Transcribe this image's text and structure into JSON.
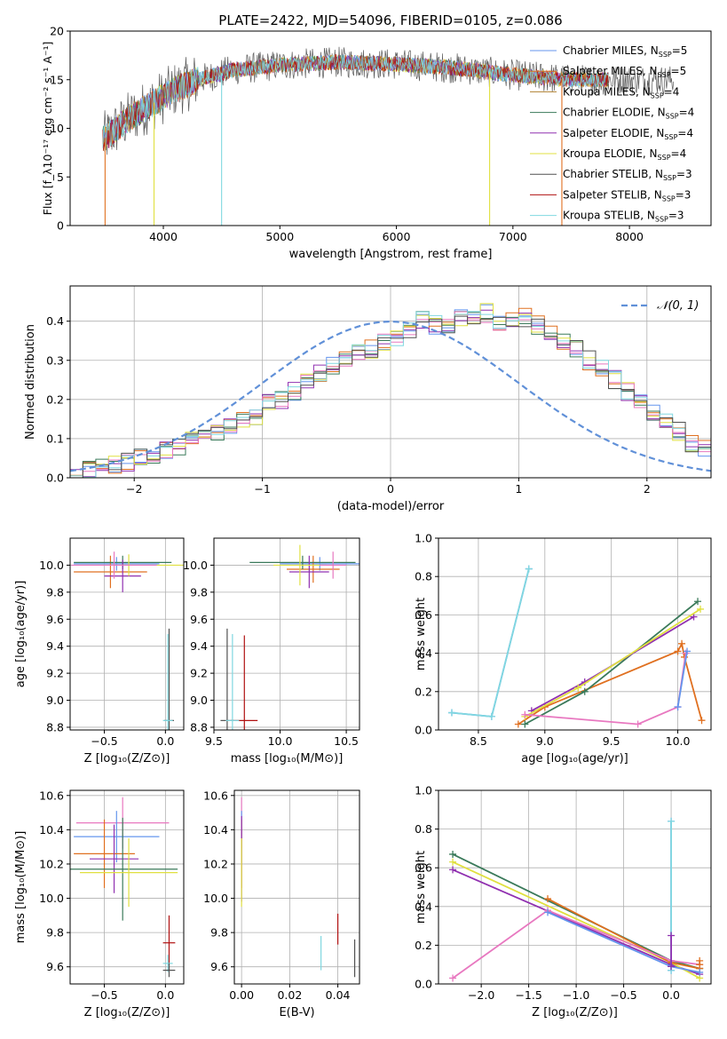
{
  "colors": {
    "chabrier_miles": "#6495ed",
    "salpeter_miles": "#e07020",
    "kroupa_miles": "#b08030",
    "chabrier_elodie": "#3a7a5a",
    "salpeter_elodie": "#9030b0",
    "kroupa_elodie": "#e0e040",
    "chabrier_stelib": "#505050",
    "salpeter_stelib": "#b01010",
    "kroupa_stelib": "#80d8e0",
    "extra_pink": "#e878c0",
    "grid": "#b0b0b0"
  },
  "chart_data": [
    {
      "type": "line",
      "title": "PLATE=2422, MJD=54096, FIBERID=0105, z=0.086",
      "xlabel": "wavelength [Angstrom, rest frame]",
      "ylabel": "Flux [f_λ10⁻¹⁷ erg cm⁻² s⁻¹ A⁻¹]",
      "xlim": [
        3200,
        8700
      ],
      "ylim": [
        0,
        20
      ],
      "xticks": [
        "4000",
        "5000",
        "6000",
        "7000",
        "8000"
      ],
      "yticks": [
        "0",
        "5",
        "10",
        "15",
        "20"
      ],
      "legend_position": "right",
      "series": [
        {
          "name": "Chabrier MILES, N",
          "sub": "SSP",
          "suffix": "=5",
          "color": "chabrier_miles"
        },
        {
          "name": "Salpeter MILES, N",
          "sub": "SSP",
          "suffix": "=5",
          "color": "salpeter_miles"
        },
        {
          "name": "Kroupa MILES, N",
          "sub": "SSP",
          "suffix": "=4",
          "color": "kroupa_miles"
        },
        {
          "name": "Chabrier ELODIE, N",
          "sub": "SSP",
          "suffix": "=4",
          "color": "chabrier_elodie"
        },
        {
          "name": "Salpeter ELODIE, N",
          "sub": "SSP",
          "suffix": "=4",
          "color": "salpeter_elodie"
        },
        {
          "name": "Kroupa ELODIE, N",
          "sub": "SSP",
          "suffix": "=4",
          "color": "kroupa_elodie"
        },
        {
          "name": "Chabrier STELIB, N",
          "sub": "SSP",
          "suffix": "=3",
          "color": "chabrier_stelib"
        },
        {
          "name": "Salpeter STELIB, N",
          "sub": "SSP",
          "suffix": "=3",
          "color": "salpeter_stelib"
        },
        {
          "name": "Kroupa STELIB, N",
          "sub": "SSP",
          "suffix": "=3",
          "color": "kroupa_stelib"
        }
      ],
      "spectrum_shape": {
        "knots": [
          [
            3500,
            9
          ],
          [
            3700,
            11
          ],
          [
            3900,
            12.5
          ],
          [
            4100,
            14
          ],
          [
            4300,
            15
          ],
          [
            4600,
            16
          ],
          [
            5000,
            16.5
          ],
          [
            5500,
            16.8
          ],
          [
            6000,
            16.6
          ],
          [
            6500,
            16.2
          ],
          [
            7000,
            15.5
          ],
          [
            7500,
            15
          ],
          [
            7800,
            15
          ]
        ],
        "drops": [
          [
            3500,
            0
          ],
          [
            3920,
            0
          ],
          [
            4500,
            0
          ],
          [
            6800,
            0
          ],
          [
            7420,
            0
          ]
        ]
      }
    },
    {
      "type": "histogram",
      "xlabel": "(data-model)/error",
      "ylabel": "Normed distribution",
      "xlim": [
        -2.5,
        2.5
      ],
      "ylim": [
        0,
        0.49
      ],
      "xticks": [
        "−2",
        "−1",
        "0",
        "1",
        "2"
      ],
      "yticks": [
        "0.0",
        "0.1",
        "0.2",
        "0.3",
        "0.4"
      ],
      "legend": "𝒩(0, 1)",
      "bin_width": 0.1,
      "base_values": [
        0.01,
        0.02,
        0.03,
        0.035,
        0.04,
        0.05,
        0.06,
        0.07,
        0.08,
        0.1,
        0.11,
        0.12,
        0.13,
        0.15,
        0.16,
        0.19,
        0.2,
        0.22,
        0.25,
        0.27,
        0.29,
        0.3,
        0.32,
        0.33,
        0.35,
        0.36,
        0.38,
        0.4,
        0.39,
        0.39,
        0.41,
        0.41,
        0.42,
        0.4,
        0.4,
        0.41,
        0.39,
        0.37,
        0.35,
        0.33,
        0.3,
        0.28,
        0.25,
        0.22,
        0.2,
        0.17,
        0.14,
        0.12,
        0.09,
        0.08,
        0.06
      ],
      "gauss_mu": 0,
      "gauss_sigma": 1
    },
    {
      "type": "errorbar",
      "xlabel": "Z [log₁₀(Z/Z⊙)]",
      "ylabel": "age  [log₁₀(age/yr)]",
      "xlim": [
        -0.78,
        0.15
      ],
      "ylim": [
        8.78,
        10.2
      ],
      "xticks": [
        "−0.5",
        "0.0"
      ],
      "yticks": [
        "8.8",
        "9.0",
        "9.2",
        "9.4",
        "9.6",
        "9.8",
        "10.0"
      ],
      "points": [
        {
          "x": -0.4,
          "xe": 0.35,
          "y": 10.01,
          "ye": 0.05,
          "color": "chabrier_miles"
        },
        {
          "x": -0.45,
          "xe": 0.3,
          "y": 9.95,
          "ye": 0.12,
          "color": "salpeter_miles"
        },
        {
          "x": -0.35,
          "xe": 0.4,
          "y": 10.02,
          "ye": 0.05,
          "color": "chabrier_elodie"
        },
        {
          "x": -0.35,
          "xe": 0.15,
          "y": 9.92,
          "ye": 0.12,
          "color": "salpeter_elodie"
        },
        {
          "x": -0.3,
          "xe": 0.45,
          "y": 10.0,
          "ye": 0.08,
          "color": "kroupa_elodie"
        },
        {
          "x": -0.42,
          "xe": 0.35,
          "y": 10.0,
          "ye": 0.1,
          "color": "extra_pink"
        },
        {
          "x": 0.03,
          "xe": 0.04,
          "y": 8.85,
          "ye": 0.68,
          "color": "chabrier_stelib"
        },
        {
          "x": 0.02,
          "xe": 0.04,
          "y": 8.85,
          "ye": 0.64,
          "color": "kroupa_stelib"
        }
      ]
    },
    {
      "type": "errorbar",
      "xlabel": "mass [log₁₀(M/M⊙)]",
      "ylabel": "",
      "xlim": [
        9.5,
        10.6
      ],
      "ylim": [
        8.78,
        10.2
      ],
      "xticks": [
        "9.5",
        "10.0",
        "10.5"
      ],
      "yticks": [
        "8.8",
        "9.0",
        "9.2",
        "9.4",
        "9.6",
        "9.8",
        "10.0"
      ],
      "points": [
        {
          "x": 10.3,
          "xe": 0.3,
          "y": 10.01,
          "ye": 0.05,
          "color": "chabrier_miles"
        },
        {
          "x": 10.25,
          "xe": 0.2,
          "y": 9.97,
          "ye": 0.1,
          "color": "salpeter_miles"
        },
        {
          "x": 10.17,
          "xe": 0.4,
          "y": 10.02,
          "ye": 0.05,
          "color": "chabrier_elodie"
        },
        {
          "x": 10.22,
          "xe": 0.15,
          "y": 9.95,
          "ye": 0.12,
          "color": "salpeter_elodie"
        },
        {
          "x": 10.15,
          "xe": 0.2,
          "y": 10.0,
          "ye": 0.15,
          "color": "kroupa_elodie"
        },
        {
          "x": 10.4,
          "xe": 0.1,
          "y": 10.0,
          "ye": 0.1,
          "color": "extra_pink"
        },
        {
          "x": 9.6,
          "xe": 0.05,
          "y": 8.85,
          "ye": 0.68,
          "color": "chabrier_stelib"
        },
        {
          "x": 9.73,
          "xe": 0.1,
          "y": 8.85,
          "ye": 0.63,
          "color": "salpeter_stelib"
        },
        {
          "x": 9.64,
          "xe": 0.05,
          "y": 8.85,
          "ye": 0.64,
          "color": "kroupa_stelib"
        }
      ]
    },
    {
      "type": "line",
      "xlabel": "age  [log₁₀(age/yr)]",
      "ylabel": "mass weight",
      "xlim": [
        8.2,
        10.25
      ],
      "ylim": [
        0,
        1
      ],
      "xticks": [
        "8.5",
        "9.0",
        "9.5",
        "10.0"
      ],
      "yticks": [
        "0.0",
        "0.2",
        "0.4",
        "0.6",
        "0.8",
        "1.0"
      ],
      "series": [
        {
          "color": "chabrier_miles",
          "x": [
            8.3,
            8.6,
            8.88
          ],
          "y": [
            0.09,
            0.07,
            0.84
          ]
        },
        {
          "color": "kroupa_stelib",
          "x": [
            8.3,
            8.6,
            8.88
          ],
          "y": [
            0.09,
            0.07,
            0.84
          ]
        },
        {
          "color": "salpeter_miles",
          "x": [
            8.8,
            9.0,
            10.0,
            10.03,
            10.05,
            10.18
          ],
          "y": [
            0.03,
            0.12,
            0.41,
            0.45,
            0.38,
            0.05
          ]
        },
        {
          "color": "chabrier_elodie",
          "x": [
            8.85,
            9.3,
            10.15
          ],
          "y": [
            0.03,
            0.2,
            0.67
          ]
        },
        {
          "color": "salpeter_elodie",
          "x": [
            8.9,
            9.3,
            10.12
          ],
          "y": [
            0.1,
            0.25,
            0.59
          ]
        },
        {
          "color": "kroupa_elodie",
          "x": [
            8.85,
            9.25,
            10.17
          ],
          "y": [
            0.07,
            0.22,
            0.63
          ]
        },
        {
          "color": "extra_pink",
          "x": [
            8.85,
            9.7,
            10.0,
            10.06
          ],
          "y": [
            0.08,
            0.03,
            0.12,
            0.4
          ]
        },
        {
          "color": "chabrier_miles",
          "x": [
            10.0,
            10.07
          ],
          "y": [
            0.12,
            0.41
          ]
        }
      ]
    },
    {
      "type": "errorbar",
      "xlabel": "Z [log₁₀(Z/Z⊙)]",
      "ylabel": "mass [log₁₀(M/M⊙)]",
      "xlim": [
        -0.78,
        0.15
      ],
      "ylim": [
        9.5,
        10.63
      ],
      "xticks": [
        "−0.5",
        "0.0"
      ],
      "yticks": [
        "9.6",
        "9.8",
        "10.0",
        "10.2",
        "10.4",
        "10.6"
      ],
      "points": [
        {
          "x": -0.35,
          "xe": 0.38,
          "y": 10.44,
          "ye": 0.15,
          "color": "extra_pink"
        },
        {
          "x": -0.4,
          "xe": 0.35,
          "y": 10.36,
          "ye": 0.15,
          "color": "chabrier_miles"
        },
        {
          "x": -0.5,
          "xe": 0.25,
          "y": 10.26,
          "ye": 0.2,
          "color": "salpeter_miles"
        },
        {
          "x": -0.42,
          "xe": 0.2,
          "y": 10.23,
          "ye": 0.2,
          "color": "salpeter_elodie"
        },
        {
          "x": -0.35,
          "xe": 0.45,
          "y": 10.17,
          "ye": 0.3,
          "color": "chabrier_elodie"
        },
        {
          "x": -0.3,
          "xe": 0.4,
          "y": 10.15,
          "ye": 0.2,
          "color": "kroupa_elodie"
        },
        {
          "x": 0.03,
          "xe": 0.05,
          "y": 9.74,
          "ye": 0.16,
          "color": "salpeter_stelib"
        },
        {
          "x": 0.02,
          "xe": 0.04,
          "y": 9.62,
          "ye": 0.05,
          "color": "kroupa_stelib"
        },
        {
          "x": 0.03,
          "xe": 0.05,
          "y": 9.58,
          "ye": 0.04,
          "color": "chabrier_stelib"
        }
      ]
    },
    {
      "type": "errorbar",
      "xlabel": "E(B-V)",
      "ylabel": "",
      "xlim": [
        -0.003,
        0.049
      ],
      "ylim": [
        9.5,
        10.63
      ],
      "xticks": [
        "0.00",
        "0.02",
        "0.04"
      ],
      "yticks": [
        "9.6",
        "9.8",
        "10.0",
        "10.2",
        "10.4",
        "10.6"
      ],
      "points": [
        {
          "x": 0.0,
          "xe": 0,
          "y": 10.44,
          "ye": 0.15,
          "color": "extra_pink"
        },
        {
          "x": 0.0,
          "xe": 0,
          "y": 10.36,
          "ye": 0.15,
          "color": "chabrier_miles"
        },
        {
          "x": 0.0,
          "xe": 0,
          "y": 10.26,
          "ye": 0.2,
          "color": "salpeter_miles"
        },
        {
          "x": 0.0,
          "xe": 0,
          "y": 10.23,
          "ye": 0.25,
          "color": "salpeter_elodie"
        },
        {
          "x": 0.0,
          "xe": 0,
          "y": 10.15,
          "ye": 0.2,
          "color": "kroupa_elodie"
        },
        {
          "x": 0.04,
          "xe": 0,
          "y": 9.82,
          "ye": 0.09,
          "color": "salpeter_stelib"
        },
        {
          "x": 0.033,
          "xe": 0,
          "y": 9.68,
          "ye": 0.1,
          "color": "kroupa_stelib"
        },
        {
          "x": 0.047,
          "xe": 0,
          "y": 9.65,
          "ye": 0.11,
          "color": "chabrier_stelib"
        }
      ]
    },
    {
      "type": "line",
      "xlabel": "Z [log₁₀(Z/Z⊙)]",
      "ylabel": "mass weight",
      "xlim": [
        -2.45,
        0.42
      ],
      "ylim": [
        0,
        1
      ],
      "xticks": [
        "−2.0",
        "−1.5",
        "−1.0",
        "−0.5",
        "0.0"
      ],
      "yticks": [
        "0.0",
        "0.2",
        "0.4",
        "0.6",
        "0.8",
        "1.0"
      ],
      "series": [
        {
          "color": "chabrier_elodie",
          "x": [
            -2.3,
            0.0,
            0.3
          ],
          "y": [
            0.67,
            0.12,
            0.08
          ]
        },
        {
          "color": "salpeter_elodie",
          "x": [
            -2.3,
            0.0,
            0.3
          ],
          "y": [
            0.59,
            0.1,
            0.05
          ]
        },
        {
          "color": "kroupa_elodie",
          "x": [
            -2.3,
            0.0,
            0.3
          ],
          "y": [
            0.63,
            0.11,
            0.03
          ]
        },
        {
          "color": "salpeter_miles",
          "x": [
            -1.3,
            0.0,
            0.3
          ],
          "y": [
            0.44,
            0.11,
            0.08
          ]
        },
        {
          "color": "extra_pink",
          "x": [
            -2.3,
            -1.3,
            0.0,
            0.3
          ],
          "y": [
            0.03,
            0.38,
            0.12,
            0.1
          ]
        },
        {
          "color": "chabrier_miles",
          "x": [
            -1.3,
            0.0,
            0.3
          ],
          "y": [
            0.37,
            0.09,
            0.06
          ]
        },
        {
          "color": "chabrier_miles",
          "x": [
            0.0,
            0.0
          ],
          "y": [
            0.07,
            0.84
          ]
        },
        {
          "color": "kroupa_stelib",
          "x": [
            0.0,
            0.0
          ],
          "y": [
            0.07,
            0.84
          ]
        },
        {
          "color": "salpeter_elodie",
          "x": [
            0.0,
            0.0
          ],
          "y": [
            0.09,
            0.25
          ]
        },
        {
          "color": "salpeter_miles",
          "x": [
            0.3,
            0.3
          ],
          "y": [
            0.1,
            0.12
          ]
        }
      ]
    }
  ]
}
